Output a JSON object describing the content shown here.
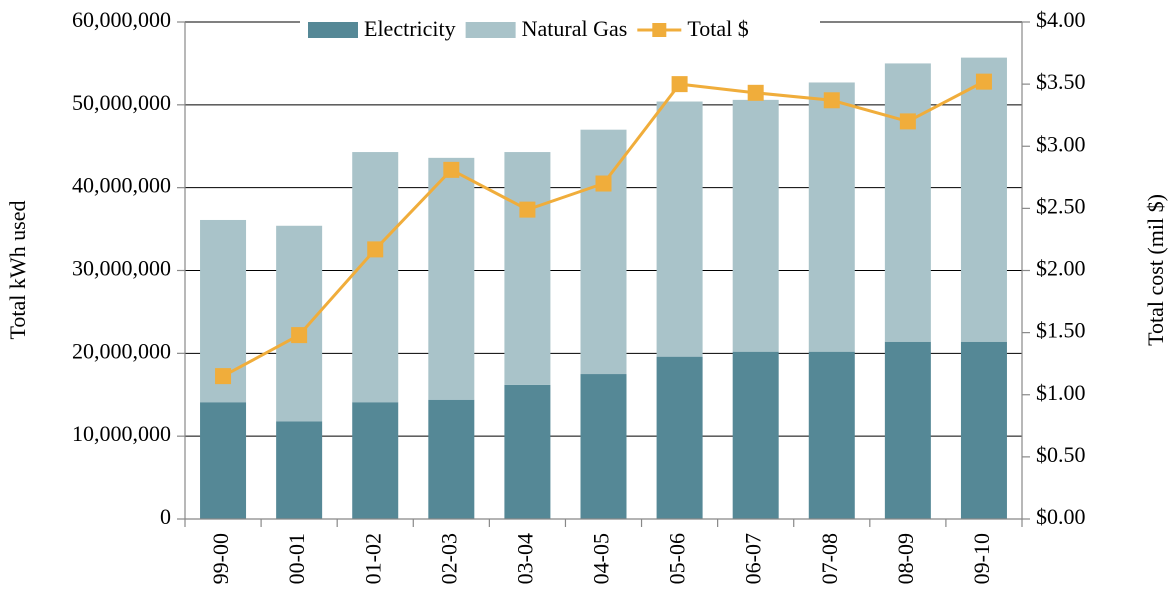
{
  "chart_data": {
    "type": "bar",
    "categories": [
      "99-00",
      "00-01",
      "01-02",
      "02-03",
      "03-04",
      "04-05",
      "05-06",
      "06-07",
      "07-08",
      "08-09",
      "09-10"
    ],
    "stacked": true,
    "series": [
      {
        "name": "Electricity",
        "color": "#558896",
        "type": "bar",
        "values": [
          14100000,
          11800000,
          14100000,
          14400000,
          16200000,
          17500000,
          19600000,
          20200000,
          20200000,
          21400000,
          21400000
        ]
      },
      {
        "name": "Natural Gas",
        "color": "#a9c3c9",
        "type": "bar",
        "values": [
          22000000,
          23600000,
          30200000,
          29200000,
          28100000,
          29500000,
          30800000,
          30400000,
          32500000,
          33600000,
          34300000
        ]
      },
      {
        "name": "Total $",
        "color": "#f0ad3b",
        "type": "line",
        "axis": "y2",
        "values": [
          1.15,
          1.48,
          2.17,
          2.81,
          2.49,
          2.7,
          3.5,
          3.43,
          3.37,
          3.2,
          3.52
        ]
      }
    ],
    "ylabel": "Total kWh used",
    "y2label": "Total cost (mil $)",
    "ylim": [
      0,
      60000000
    ],
    "yticks": [
      0,
      {
        "value": 10000000,
        "label": "10,000,000"
      },
      {
        "value": 20000000,
        "label": "20,000,000"
      },
      {
        "value": 30000000,
        "label": "30,000,000"
      },
      {
        "value": 40000000,
        "label": "40,000,000"
      },
      {
        "value": 50000000,
        "label": "50,000,000"
      },
      {
        "value": 60000000,
        "label": "60,000,000"
      }
    ],
    "y2lim": [
      0,
      4
    ],
    "y2ticks": [
      {
        "value": 0,
        "label": "$0.00"
      },
      {
        "value": 0.5,
        "label": "$0.50"
      },
      {
        "value": 1,
        "label": "$1.00"
      },
      {
        "value": 1.5,
        "label": "$1.50"
      },
      {
        "value": 2,
        "label": "$2.00"
      },
      {
        "value": 2.5,
        "label": "$2.50"
      },
      {
        "value": 3,
        "label": "$3.00"
      },
      {
        "value": 3.5,
        "label": "$3.50"
      },
      {
        "value": 4,
        "label": "$4.00"
      }
    ],
    "grid": true,
    "legend": "top"
  }
}
